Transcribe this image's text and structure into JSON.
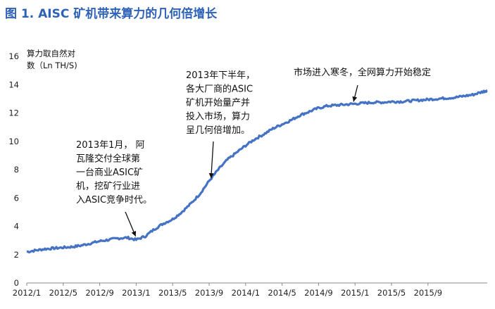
{
  "chart_data": {
    "type": "line",
    "title": "图 1. AISC 矿机带来算力的几何倍增长",
    "ylabel": [
      "算力取自然对",
      "数（Ln TH/S)"
    ],
    "ylim": [
      0,
      16
    ],
    "yticks": [
      0,
      2,
      4,
      6,
      8,
      10,
      12,
      14,
      16
    ],
    "x_tick_labels": [
      "2012/1",
      "2012/5",
      "2012/9",
      "2013/1",
      "2013/5",
      "2013/9",
      "2014/1",
      "2014/5",
      "2014/9",
      "2015/1",
      "2015/5",
      "2015/9"
    ],
    "x_tick_months": [
      0,
      4,
      8,
      12,
      16,
      20,
      24,
      28,
      32,
      36,
      40,
      44
    ],
    "xlim_months": [
      0,
      50.5
    ],
    "series": [
      {
        "color": "#4472c4",
        "x_months": [
          0,
          1,
          2,
          3,
          4,
          5,
          6,
          7,
          8,
          9,
          10,
          11,
          12,
          13,
          14,
          15,
          16,
          17,
          18,
          19,
          20,
          21,
          22,
          23,
          24,
          25,
          26,
          27,
          28,
          29,
          30,
          31,
          32,
          33,
          34,
          35,
          36,
          37,
          38,
          39,
          40,
          41,
          42,
          43,
          44,
          45,
          46,
          47,
          48,
          49,
          50,
          50.5
        ],
        "values": [
          2.2,
          2.3,
          2.4,
          2.45,
          2.5,
          2.55,
          2.65,
          2.8,
          2.95,
          3.05,
          3.15,
          3.2,
          3.05,
          3.3,
          3.8,
          4.2,
          4.5,
          5.0,
          5.6,
          6.3,
          7.2,
          8.0,
          8.7,
          9.2,
          9.7,
          10.15,
          10.5,
          10.9,
          11.2,
          11.5,
          11.85,
          12.1,
          12.35,
          12.5,
          12.55,
          12.6,
          12.65,
          12.7,
          12.75,
          12.75,
          12.8,
          12.8,
          12.85,
          12.9,
          12.95,
          13.0,
          13.05,
          13.1,
          13.2,
          13.3,
          13.5,
          13.6
        ]
      }
    ],
    "annotations": [
      {
        "lines": [
          "2013年1月， 阿",
          "瓦隆交付全球第",
          "一台商业ASIC矿",
          "机，挖矿行业进",
          "入ASIC竞争时代。"
        ],
        "target": [
          12,
          3.2
        ]
      },
      {
        "lines": [
          "2013年下半年，",
          "各大厂商的ASIC",
          "矿机开始量产并",
          "投入市场，算力",
          "呈几何倍增加。"
        ],
        "target": [
          20.2,
          7.3
        ]
      },
      {
        "lines": [
          "市场进入寒冬，全网算力开始稳定"
        ],
        "target": [
          35.8,
          12.7
        ]
      }
    ]
  }
}
